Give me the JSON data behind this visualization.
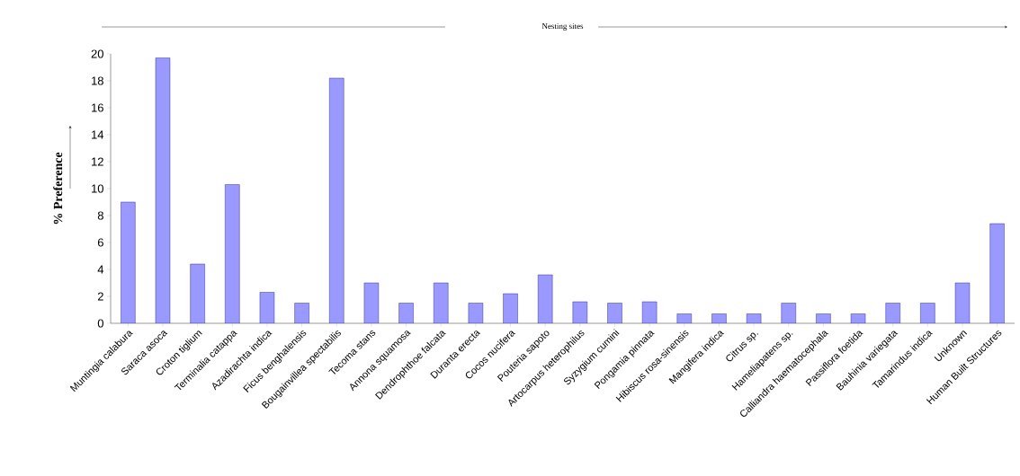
{
  "chart_data": {
    "type": "bar",
    "xlabel": "Nesting sites",
    "ylabel": "% Preference",
    "categories": [
      "Muntingia calabura",
      "Saraca asoca",
      "Croton tiglium",
      "Terminalia catappa",
      "Azadirachta indica",
      "Ficus benghalensis",
      "Bougainvillea spectabilis",
      "Tecoma stans",
      "Annona squamosa",
      "Dendrophthoe falcata",
      "Duranta erecta",
      "Cocos nucifera",
      "Pouteria sapoto",
      "Artocarpus heterophilus",
      "Syzygium cumini",
      "Pongamia pinnata",
      "Hibiscus rosa-sinensis",
      "Mangifera indica",
      "Citrus sp.",
      "Hameliapatens sp.",
      "Calliandra haematocephala",
      "Passiflora foetida",
      "Bauhinia variegata",
      "Tamarindus indica",
      "Unknown",
      "Human Built Structures"
    ],
    "values": [
      9.0,
      19.7,
      4.4,
      10.3,
      2.3,
      1.5,
      18.2,
      3.0,
      1.5,
      3.0,
      1.5,
      2.2,
      3.6,
      1.6,
      1.5,
      1.6,
      0.7,
      0.7,
      0.7,
      1.5,
      0.7,
      0.7,
      1.5,
      1.5,
      3.0,
      7.4
    ],
    "color": "#9999ff",
    "ylim": [
      0,
      20
    ],
    "yticks": [
      0,
      2,
      4,
      6,
      8,
      10,
      12,
      14,
      16,
      18,
      20
    ]
  }
}
